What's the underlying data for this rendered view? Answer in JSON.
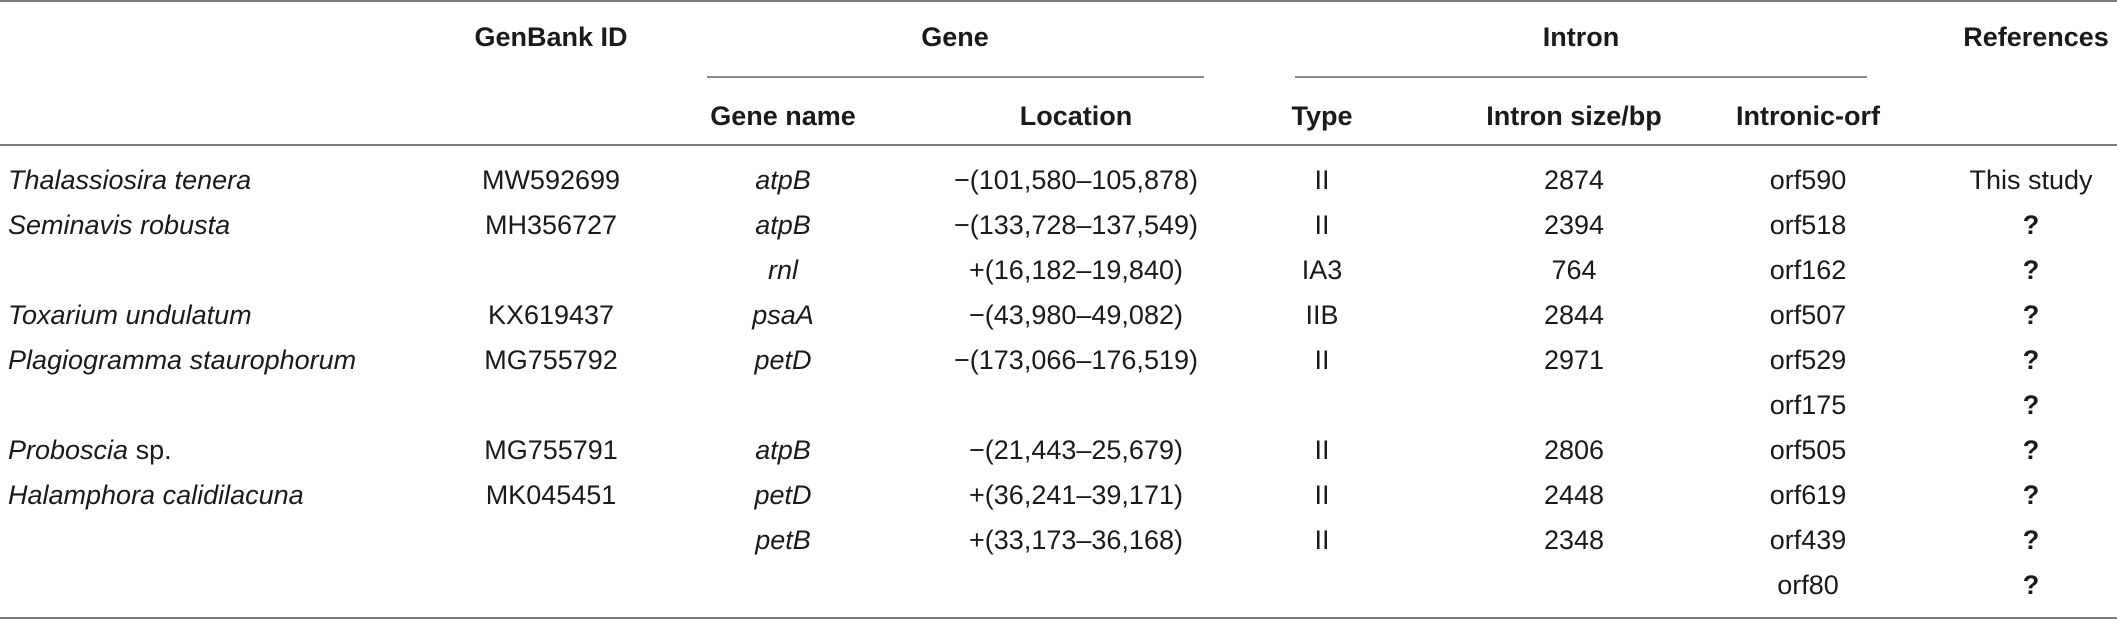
{
  "headers": {
    "genbank": "GenBank ID",
    "gene_group": "Gene",
    "intron_group": "Intron",
    "references": "References",
    "gene_name": "Gene name",
    "location": "Location",
    "type": "Type",
    "intron_size": "Intron size/bp",
    "intronic_orf": "Intronic-orf"
  },
  "rows": [
    {
      "species": "Thalassiosira tenera",
      "genbank": "MW592699",
      "gene": "atpB",
      "location": "−(101,580–105,878)",
      "type": "II",
      "size": "2874",
      "orf": "orf590",
      "ref": "This study"
    },
    {
      "species": "Seminavis robusta",
      "genbank": "MH356727",
      "gene": "atpB",
      "location": "−(133,728–137,549)",
      "type": "II",
      "size": "2394",
      "orf": "orf518",
      "ref": "?"
    },
    {
      "species": "",
      "genbank": "",
      "gene": "rnl",
      "location": "+(16,182–19,840)",
      "type": "IA3",
      "size": "764",
      "orf": "orf162",
      "ref": "?"
    },
    {
      "species": "Toxarium undulatum",
      "genbank": "KX619437",
      "gene": "psaA",
      "location": "−(43,980–49,082)",
      "type": "IIB",
      "size": "2844",
      "orf": "orf507",
      "ref": "?"
    },
    {
      "species": "Plagiogramma staurophorum",
      "genbank": "MG755792",
      "gene": "petD",
      "location": "−(173,066–176,519)",
      "type": "II",
      "size": "2971",
      "orf": "orf529",
      "ref": "?"
    },
    {
      "species": "",
      "genbank": "",
      "gene": "",
      "location": "",
      "type": "",
      "size": "",
      "orf": "orf175",
      "ref": "?"
    },
    {
      "species": "Proboscia sp.",
      "genbank": "MG755791",
      "gene": "atpB",
      "location": "−(21,443–25,679)",
      "type": "II",
      "size": "2806",
      "orf": "orf505",
      "ref": "?"
    },
    {
      "species": "Halamphora calidilacuna",
      "genbank": "MK045451",
      "gene": "petD",
      "location": "+(36,241–39,171)",
      "type": "II",
      "size": "2448",
      "orf": "orf619",
      "ref": "?"
    },
    {
      "species": "",
      "genbank": "",
      "gene": "petB",
      "location": "+(33,173–36,168)",
      "type": "II",
      "size": "2348",
      "orf": "orf439",
      "ref": "?"
    },
    {
      "species": "",
      "genbank": "",
      "gene": "",
      "location": "",
      "type": "",
      "size": "",
      "orf": "orf80",
      "ref": "?"
    }
  ]
}
